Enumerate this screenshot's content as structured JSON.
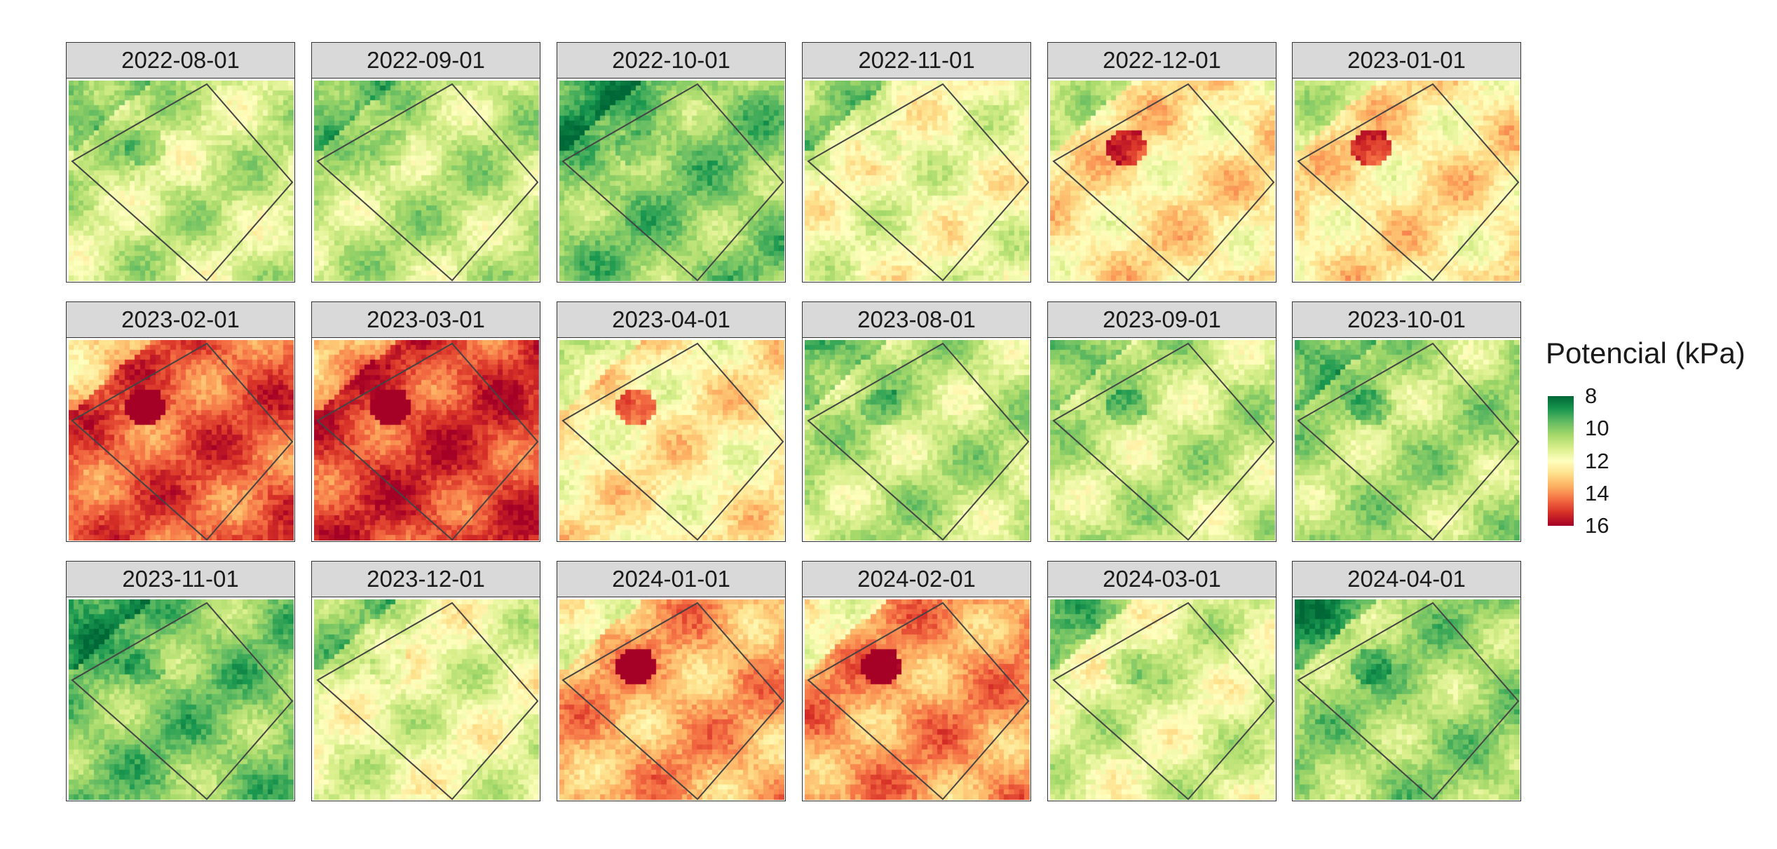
{
  "chart_data": {
    "type": "heatmap",
    "title": "",
    "legend": {
      "title": "Potencial (kPa)",
      "position": "right",
      "ticks": [
        8,
        10,
        12,
        14,
        16
      ],
      "range": [
        8,
        16
      ],
      "palette": [
        "#006837",
        "#1a9850",
        "#66bd63",
        "#a6d96a",
        "#d9ef8b",
        "#ffffbf",
        "#fee08b",
        "#fdae61",
        "#f46d43",
        "#d73027",
        "#a50026"
      ]
    },
    "panels": [
      {
        "label": "2022-08-01",
        "base": 11.1
      },
      {
        "label": "2022-09-01",
        "base": 10.9
      },
      {
        "label": "2022-10-01",
        "base": 10.1
      },
      {
        "label": "2022-11-01",
        "base": 11.8
      },
      {
        "label": "2022-12-01",
        "base": 12.6
      },
      {
        "label": "2023-01-01",
        "base": 12.6
      },
      {
        "label": "2023-02-01",
        "base": 14.6
      },
      {
        "label": "2023-03-01",
        "base": 15.0
      },
      {
        "label": "2023-04-01",
        "base": 12.4
      },
      {
        "label": "2023-08-01",
        "base": 10.9
      },
      {
        "label": "2023-09-01",
        "base": 11.0
      },
      {
        "label": "2023-10-01",
        "base": 10.7
      },
      {
        "label": "2023-11-01",
        "base": 10.0
      },
      {
        "label": "2023-12-01",
        "base": 11.6
      },
      {
        "label": "2024-01-01",
        "base": 13.6
      },
      {
        "label": "2024-02-01",
        "base": 13.8
      },
      {
        "label": "2024-03-01",
        "base": 11.4
      },
      {
        "label": "2024-04-01",
        "base": 10.4
      }
    ]
  }
}
